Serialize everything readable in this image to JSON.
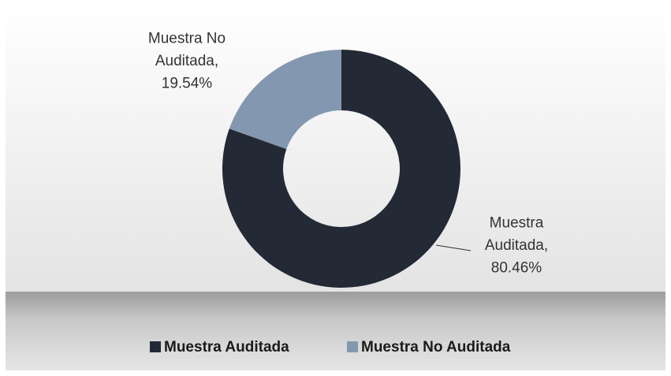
{
  "chart_data": {
    "type": "donut",
    "categories": [
      "Muestra Auditada",
      "Muestra No Auditada"
    ],
    "values": [
      80.46,
      19.54
    ],
    "value_labels": [
      "Muestra Auditada, 80.46%",
      "Muestra No Auditada, 19.54%"
    ],
    "colors": [
      "#232a36",
      "#8497b0"
    ],
    "legend": "bottom"
  }
}
